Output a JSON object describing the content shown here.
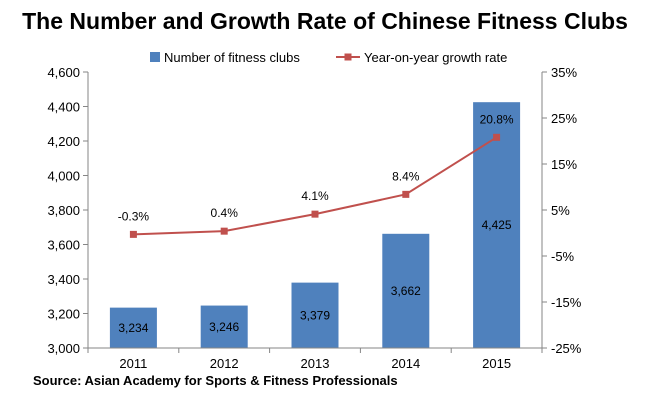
{
  "chart_data": {
    "type": "bar",
    "title": "The Number and Growth Rate of Chinese Fitness Clubs",
    "source": "Source: Asian Academy for Sports & Fitness Professionals",
    "categories": [
      "2011",
      "2012",
      "2013",
      "2014",
      "2015"
    ],
    "series": [
      {
        "name": "Number of fitness clubs",
        "type": "bar",
        "axis": "left",
        "color": "#4F81BD",
        "values": [
          3234,
          3246,
          3379,
          3662,
          4425
        ],
        "labels": [
          "3,234",
          "3,246",
          "3,379",
          "3,662",
          "4,425"
        ]
      },
      {
        "name": "Year-on-year growth rate",
        "type": "line",
        "axis": "right",
        "color": "#C0504D",
        "values": [
          -0.3,
          0.4,
          4.1,
          8.4,
          20.8
        ],
        "labels": [
          "-0.3%",
          "0.4%",
          "4.1%",
          "8.4%",
          "20.8%"
        ]
      }
    ],
    "y_left": {
      "min": 3000,
      "max": 4600,
      "ticks": [
        3000,
        3200,
        3400,
        3600,
        3800,
        4000,
        4200,
        4400,
        4600
      ],
      "tick_labels": [
        "3,000",
        "3,200",
        "3,400",
        "3,600",
        "3,800",
        "4,000",
        "4,200",
        "4,400",
        "4,600"
      ]
    },
    "y_right": {
      "min": -25,
      "max": 35,
      "ticks": [
        -25,
        -15,
        -5,
        5,
        15,
        25,
        35
      ],
      "tick_labels": [
        "-25%",
        "-15%",
        "-5%",
        "5%",
        "15%",
        "25%",
        "35%"
      ]
    },
    "legend_position": "top",
    "grid": false
  }
}
